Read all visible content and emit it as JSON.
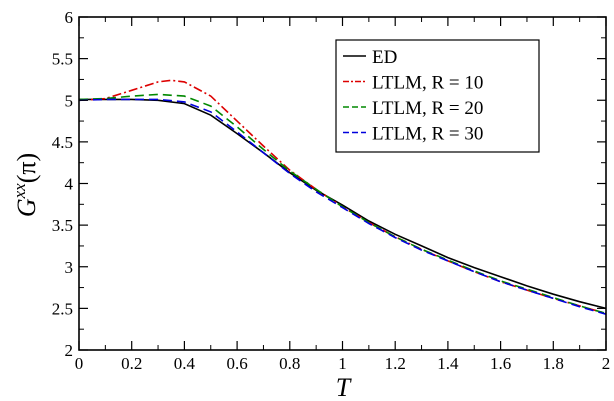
{
  "chart_data": {
    "type": "line",
    "xlabel": "T",
    "ylabel": {
      "base": "G",
      "sup": "xx",
      "arg": "(π)"
    },
    "xlim": [
      0,
      2
    ],
    "ylim": [
      2,
      6
    ],
    "xticks": [
      "0",
      "0.2",
      "0.4",
      "0.6",
      "0.8",
      "1",
      "1.2",
      "1.4",
      "1.6",
      "1.8",
      "2"
    ],
    "yticks": [
      "2",
      "2.5",
      "3",
      "3.5",
      "4",
      "4.5",
      "5",
      "5.5",
      "6"
    ],
    "legend_position": "top-right",
    "grid": false,
    "series": [
      {
        "name": "ED",
        "color": "#000000",
        "dash": "solid",
        "x": [
          0,
          0.1,
          0.2,
          0.3,
          0.4,
          0.5,
          0.6,
          0.7,
          0.8,
          0.9,
          1.0,
          1.1,
          1.2,
          1.3,
          1.4,
          1.5,
          1.6,
          1.7,
          1.8,
          1.9,
          2.0
        ],
        "y": [
          5.01,
          5.01,
          5.01,
          5.0,
          4.96,
          4.82,
          4.6,
          4.37,
          4.13,
          3.92,
          3.74,
          3.55,
          3.39,
          3.25,
          3.11,
          2.99,
          2.88,
          2.77,
          2.67,
          2.58,
          2.5
        ]
      },
      {
        "name": "LTLM, R = 10",
        "color": "#dd0000",
        "dash": "dashdot",
        "x": [
          0,
          0.1,
          0.2,
          0.3,
          0.35,
          0.4,
          0.5,
          0.6,
          0.7,
          0.8,
          0.9,
          1.0,
          1.1,
          1.2,
          1.3,
          1.4,
          1.5,
          1.6,
          1.7,
          1.8,
          1.9,
          2.0
        ],
        "y": [
          5.0,
          5.02,
          5.12,
          5.22,
          5.24,
          5.22,
          5.05,
          4.75,
          4.45,
          4.16,
          3.93,
          3.72,
          3.53,
          3.36,
          3.21,
          3.07,
          2.94,
          2.82,
          2.72,
          2.62,
          2.53,
          2.44
        ]
      },
      {
        "name": "LTLM, R = 20",
        "color": "#008800",
        "dash": "dashed",
        "x": [
          0,
          0.1,
          0.2,
          0.3,
          0.4,
          0.5,
          0.6,
          0.7,
          0.8,
          0.9,
          1.0,
          1.1,
          1.2,
          1.3,
          1.4,
          1.5,
          1.6,
          1.7,
          1.8,
          1.9,
          2.0
        ],
        "y": [
          5.01,
          5.02,
          5.05,
          5.07,
          5.05,
          4.93,
          4.68,
          4.41,
          4.15,
          3.93,
          3.72,
          3.53,
          3.36,
          3.21,
          3.08,
          2.95,
          2.83,
          2.73,
          2.63,
          2.53,
          2.44
        ]
      },
      {
        "name": "LTLM, R = 30",
        "color": "#0000dd",
        "dash": "dashed",
        "x": [
          0,
          0.1,
          0.2,
          0.3,
          0.4,
          0.5,
          0.6,
          0.7,
          0.8,
          0.9,
          1.0,
          1.1,
          1.2,
          1.3,
          1.4,
          1.5,
          1.6,
          1.7,
          1.8,
          1.9,
          2.0
        ],
        "y": [
          5.0,
          5.01,
          5.01,
          5.01,
          4.98,
          4.86,
          4.62,
          4.37,
          4.12,
          3.9,
          3.71,
          3.52,
          3.35,
          3.2,
          3.07,
          2.94,
          2.82,
          2.72,
          2.62,
          2.52,
          2.43
        ]
      }
    ]
  }
}
